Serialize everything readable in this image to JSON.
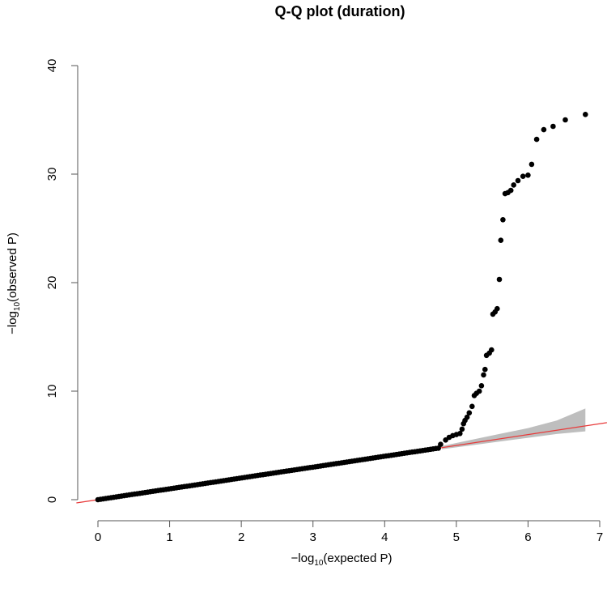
{
  "chart_data": {
    "type": "scatter",
    "title": "Q-Q plot (duration)",
    "xlabel": {
      "prefix": "−log",
      "sub": "10",
      "suffix": "(expected P)"
    },
    "ylabel": {
      "prefix": "−log",
      "sub": "10",
      "suffix": "(observed P)"
    },
    "xlim": [
      0,
      7
    ],
    "ylim": [
      0,
      40
    ],
    "xticks": [
      "0",
      "1",
      "2",
      "3",
      "4",
      "5",
      "6",
      "7"
    ],
    "yticks": [
      "0",
      "10",
      "20",
      "30",
      "40"
    ],
    "grid": false,
    "null_line": {
      "color": "#e83a3a",
      "slope": 1,
      "intercept": 0
    },
    "confidence_band": {
      "color": "#bebebe",
      "x": [
        4.8,
        5.2,
        5.6,
        6.0,
        6.4,
        6.8
      ],
      "lower": [
        4.65,
        5.0,
        5.35,
        5.7,
        6.05,
        6.3
      ],
      "upper": [
        4.95,
        5.5,
        6.05,
        6.6,
        7.3,
        8.4
      ]
    },
    "diagonal_points_range": [
      0,
      4.75
    ],
    "tail_points": [
      {
        "x": 4.78,
        "y": 5.1
      },
      {
        "x": 4.85,
        "y": 5.5
      },
      {
        "x": 4.9,
        "y": 5.75
      },
      {
        "x": 4.95,
        "y": 5.9
      },
      {
        "x": 5.0,
        "y": 6.0
      },
      {
        "x": 5.05,
        "y": 6.1
      },
      {
        "x": 5.08,
        "y": 6.5
      },
      {
        "x": 5.1,
        "y": 7.0
      },
      {
        "x": 5.12,
        "y": 7.3
      },
      {
        "x": 5.15,
        "y": 7.6
      },
      {
        "x": 5.18,
        "y": 8.0
      },
      {
        "x": 5.22,
        "y": 8.6
      },
      {
        "x": 5.25,
        "y": 9.6
      },
      {
        "x": 5.28,
        "y": 9.8
      },
      {
        "x": 5.32,
        "y": 10.0
      },
      {
        "x": 5.35,
        "y": 10.5
      },
      {
        "x": 5.38,
        "y": 11.5
      },
      {
        "x": 5.4,
        "y": 12.0
      },
      {
        "x": 5.42,
        "y": 13.3
      },
      {
        "x": 5.46,
        "y": 13.5
      },
      {
        "x": 5.49,
        "y": 13.8
      },
      {
        "x": 5.51,
        "y": 17.1
      },
      {
        "x": 5.54,
        "y": 17.3
      },
      {
        "x": 5.57,
        "y": 17.6
      },
      {
        "x": 5.6,
        "y": 20.3
      },
      {
        "x": 5.62,
        "y": 23.9
      },
      {
        "x": 5.65,
        "y": 25.8
      },
      {
        "x": 5.68,
        "y": 28.2
      },
      {
        "x": 5.72,
        "y": 28.3
      },
      {
        "x": 5.76,
        "y": 28.5
      },
      {
        "x": 5.8,
        "y": 29.0
      },
      {
        "x": 5.86,
        "y": 29.4
      },
      {
        "x": 5.93,
        "y": 29.8
      },
      {
        "x": 6.0,
        "y": 29.9
      },
      {
        "x": 6.05,
        "y": 30.9
      },
      {
        "x": 6.12,
        "y": 33.2
      },
      {
        "x": 6.22,
        "y": 34.1
      },
      {
        "x": 6.35,
        "y": 34.4
      },
      {
        "x": 6.52,
        "y": 35.0
      },
      {
        "x": 6.8,
        "y": 35.5
      }
    ]
  }
}
